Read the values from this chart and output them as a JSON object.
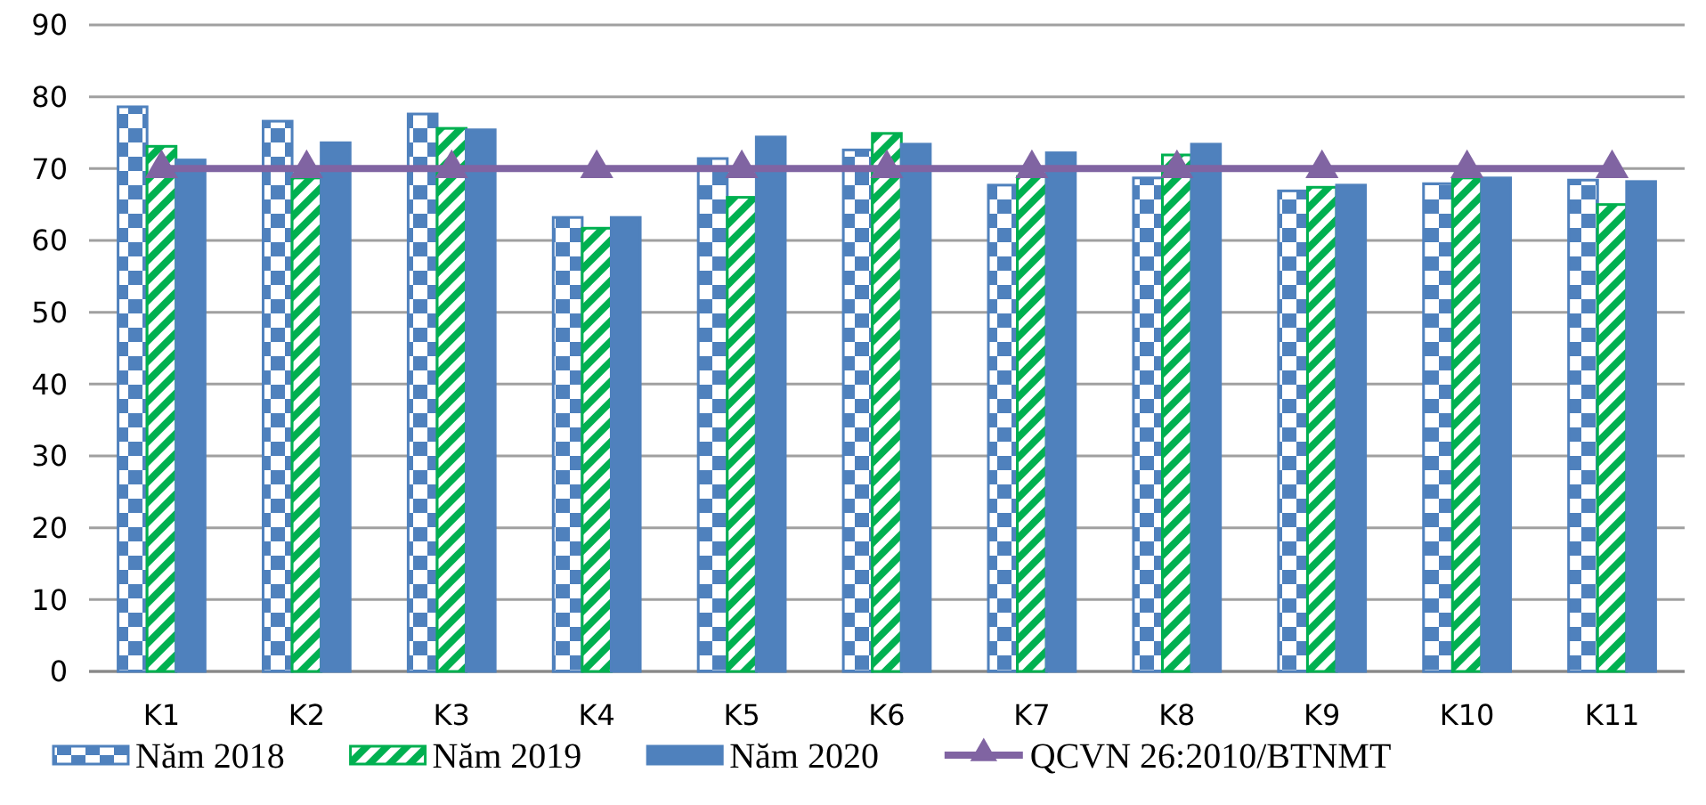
{
  "chart_data": {
    "type": "bar",
    "categories": [
      "K1",
      "K2",
      "K3",
      "K4",
      "K5",
      "K6",
      "K7",
      "K8",
      "K9",
      "K10",
      "K11"
    ],
    "series": [
      {
        "name": "Năm 2018",
        "color": "#4f81bd",
        "values": [
          78.6,
          76.6,
          77.6,
          63.2,
          71.4,
          72.6,
          67.7,
          68.7,
          66.9,
          67.9,
          68.4
        ]
      },
      {
        "name": "Năm 2019",
        "color": "#00b050",
        "values": [
          73.1,
          68.7,
          75.6,
          61.7,
          66.0,
          74.9,
          68.9,
          71.9,
          67.4,
          68.7,
          65.0
        ]
      },
      {
        "name": "Năm 2020",
        "color": "#4f81bd",
        "values": [
          71.2,
          73.6,
          75.4,
          63.2,
          74.4,
          73.4,
          72.2,
          73.4,
          67.7,
          68.7,
          68.2
        ]
      },
      {
        "name": "QCVN 26:2010/BTNMT",
        "type": "line",
        "color": "#8064a2",
        "marker": "triangle",
        "values": [
          70,
          70,
          70,
          70,
          70,
          70,
          70,
          70,
          70,
          70,
          70
        ]
      }
    ],
    "ylim": [
      0,
      90
    ],
    "yticks": [
      0,
      10,
      20,
      30,
      40,
      50,
      60,
      70,
      80,
      90
    ],
    "grid": "y",
    "legend": "bottom"
  }
}
